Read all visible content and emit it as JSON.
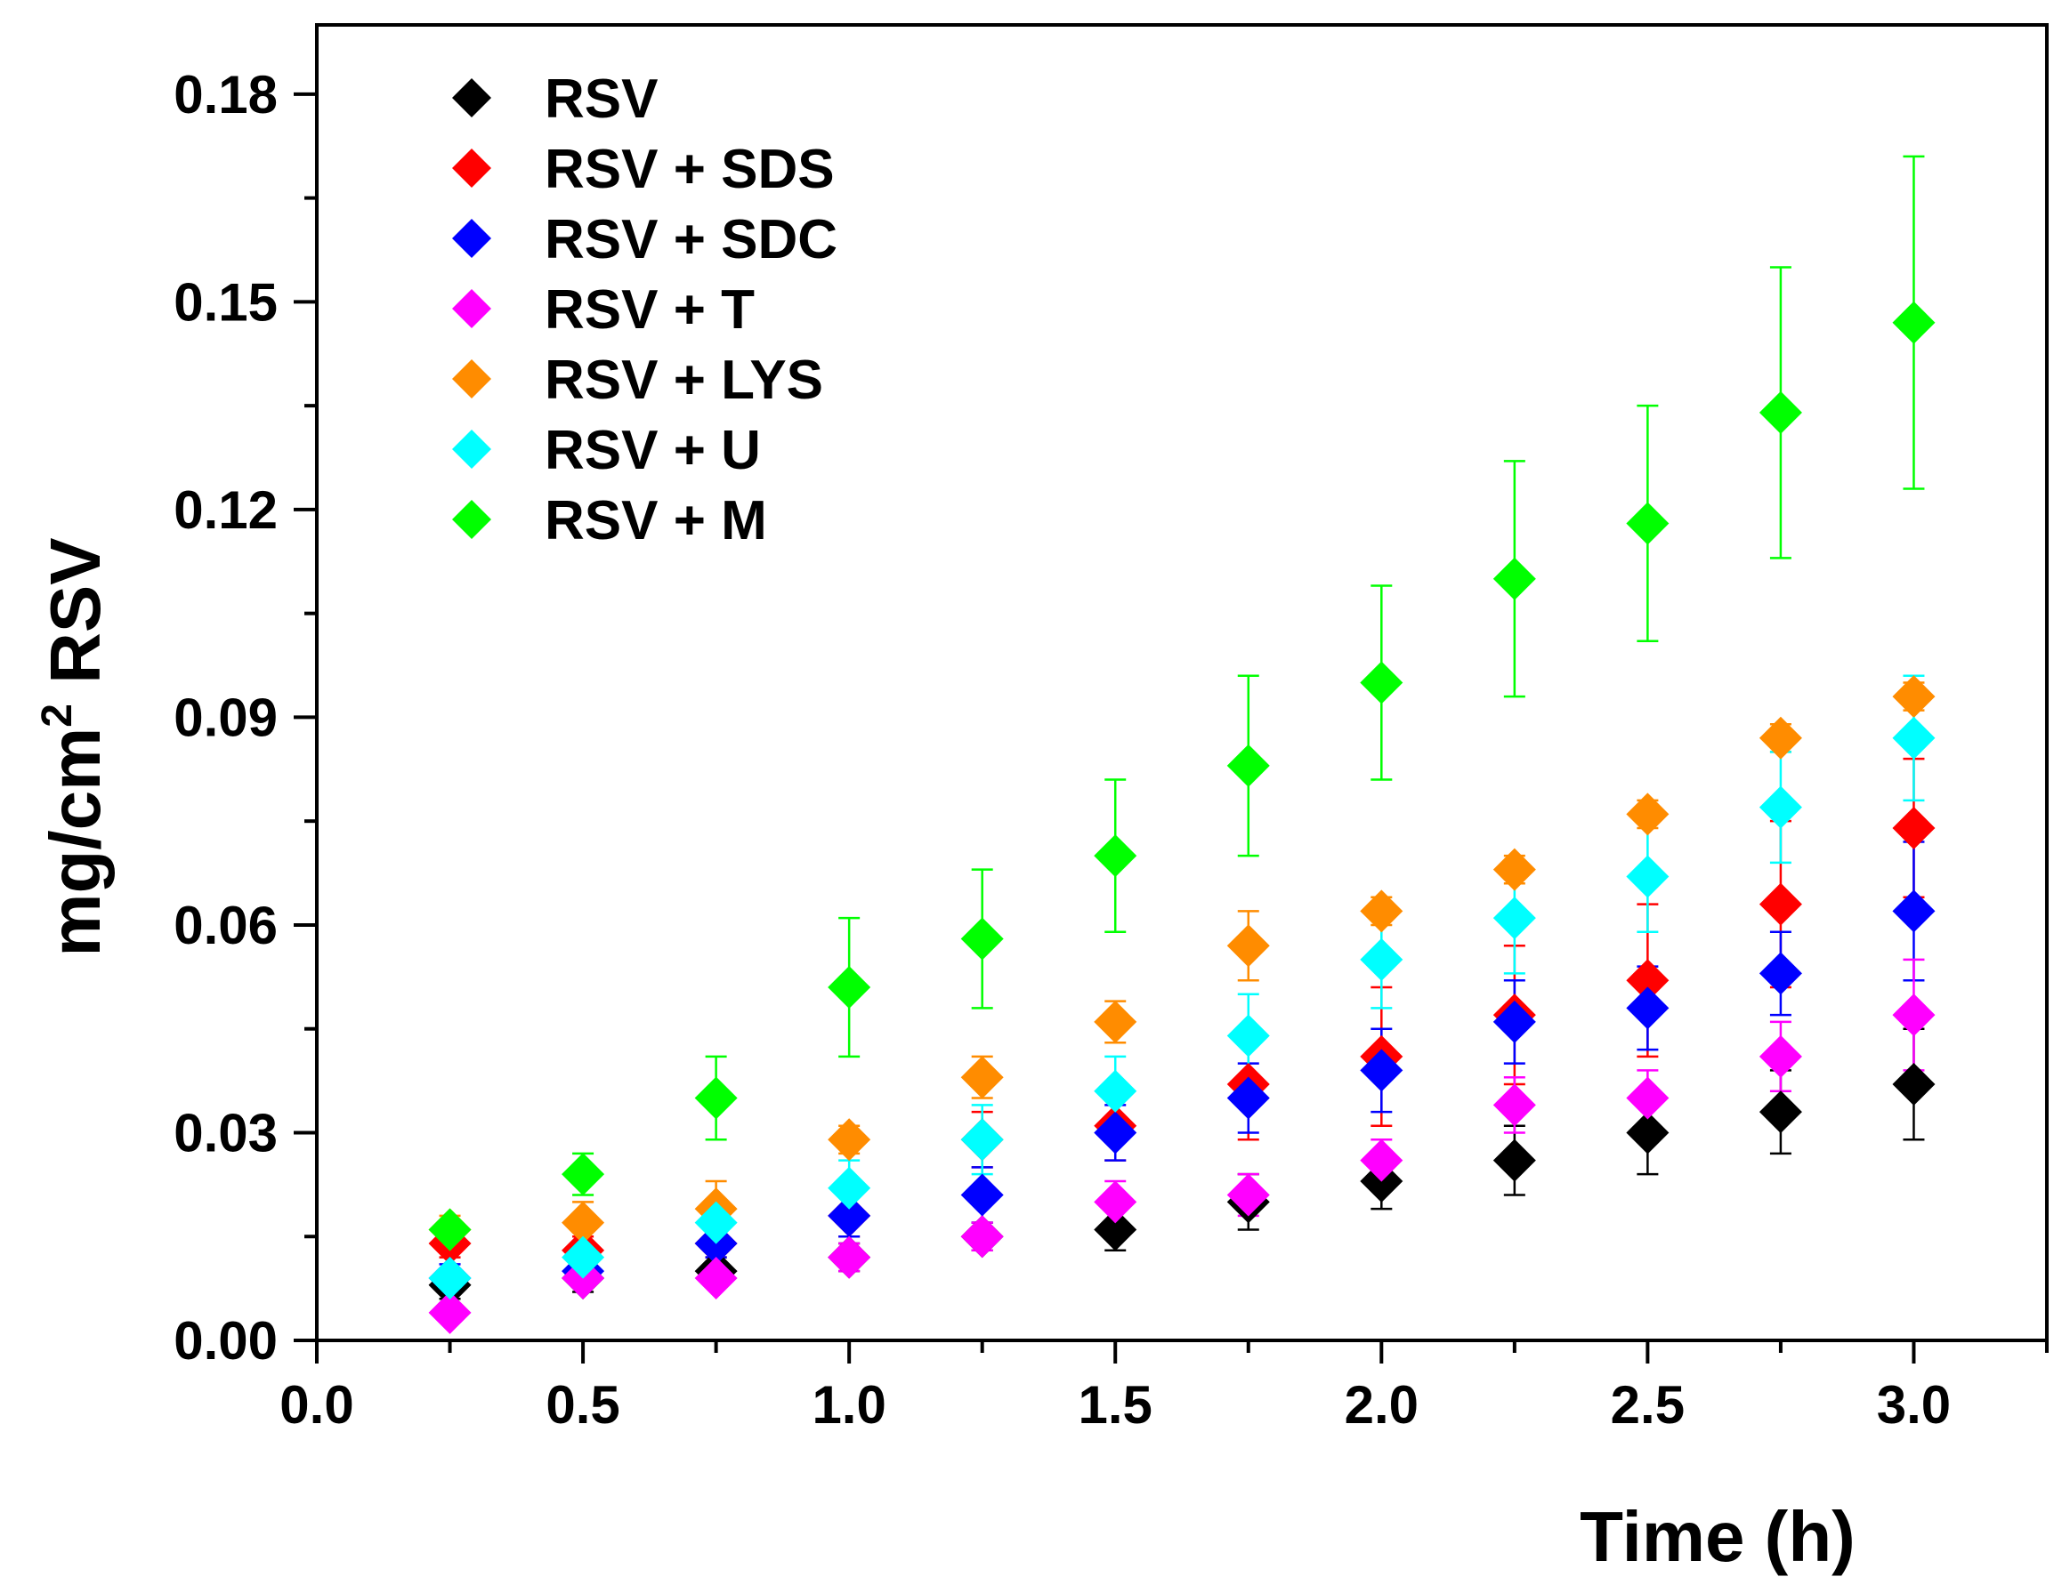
{
  "chart_data": {
    "type": "scatter",
    "title": "",
    "xlabel": "Time (h)",
    "ylabel": "mg/cm",
    "ylabel_sup": "2",
    "ylabel_suffix": " RSV",
    "xlim": [
      0,
      3.25
    ],
    "ylim": [
      0,
      0.19
    ],
    "xticks": [
      "0.0",
      "0.5",
      "1.0",
      "1.5",
      "2.0",
      "2.5",
      "3.0"
    ],
    "yticks": [
      "0.00",
      "0.03",
      "0.06",
      "0.09",
      "0.12",
      "0.15",
      "0.18"
    ],
    "grid": false,
    "legend_position": "top-left",
    "x": [
      0.25,
      0.5,
      0.75,
      1.0,
      1.25,
      1.5,
      1.75,
      2.0,
      2.25,
      2.5,
      2.75,
      3.0
    ],
    "series": [
      {
        "name": "RSV",
        "color": "#000000",
        "y": [
          0.008,
          0.009,
          0.01,
          0.012,
          0.015,
          0.016,
          0.02,
          0.023,
          0.026,
          0.03,
          0.033,
          0.037
        ],
        "err": [
          0.002,
          0.002,
          0.002,
          0.002,
          0.002,
          0.003,
          0.004,
          0.004,
          0.005,
          0.006,
          0.006,
          0.008
        ]
      },
      {
        "name": "RSV + SDS",
        "color": "#ff0000",
        "y": [
          0.014,
          0.013,
          0.014,
          0.018,
          0.029,
          0.031,
          0.037,
          0.041,
          0.047,
          0.052,
          0.063,
          0.074
        ],
        "err": [
          0.002,
          0.002,
          0.002,
          0.003,
          0.004,
          0.005,
          0.008,
          0.01,
          0.01,
          0.011,
          0.012,
          0.01
        ]
      },
      {
        "name": "RSV + SDC",
        "color": "#0000ff",
        "y": [
          0.009,
          0.01,
          0.014,
          0.018,
          0.021,
          0.03,
          0.035,
          0.039,
          0.046,
          0.048,
          0.053,
          0.062
        ],
        "err": [
          0.002,
          0.002,
          0.002,
          0.003,
          0.004,
          0.004,
          0.005,
          0.006,
          0.006,
          0.006,
          0.006,
          0.01
        ]
      },
      {
        "name": "RSV + T",
        "color": "#ff00ff",
        "y": [
          0.004,
          0.009,
          0.009,
          0.012,
          0.015,
          0.02,
          0.021,
          0.026,
          0.034,
          0.035,
          0.041,
          0.047
        ],
        "err": [
          0.001,
          0.001,
          0.001,
          0.002,
          0.002,
          0.003,
          0.003,
          0.003,
          0.004,
          0.004,
          0.005,
          0.008
        ]
      },
      {
        "name": "RSV + LYS",
        "color": "#ff8c00",
        "y": [
          0.016,
          0.017,
          0.019,
          0.029,
          0.038,
          0.046,
          0.057,
          0.062,
          0.068,
          0.076,
          0.087,
          0.093
        ],
        "err": [
          0.002,
          0.003,
          0.004,
          0.002,
          0.003,
          0.003,
          0.005,
          0.002,
          0.002,
          0.002,
          0.002,
          0.002
        ]
      },
      {
        "name": "RSV + U",
        "color": "#00ffff",
        "y": [
          0.009,
          0.012,
          0.017,
          0.022,
          0.029,
          0.036,
          0.044,
          0.055,
          0.061,
          0.067,
          0.077,
          0.087
        ],
        "err": [
          0.001,
          0.001,
          0.002,
          0.004,
          0.005,
          0.005,
          0.006,
          0.007,
          0.008,
          0.008,
          0.008,
          0.009
        ]
      },
      {
        "name": "RSV + M",
        "color": "#00ff00",
        "y": [
          0.016,
          0.024,
          0.035,
          0.051,
          0.058,
          0.07,
          0.083,
          0.095,
          0.11,
          0.118,
          0.134,
          0.147
        ],
        "err": [
          0.001,
          0.003,
          0.006,
          0.01,
          0.01,
          0.011,
          0.013,
          0.014,
          0.017,
          0.017,
          0.021,
          0.024
        ]
      }
    ]
  }
}
